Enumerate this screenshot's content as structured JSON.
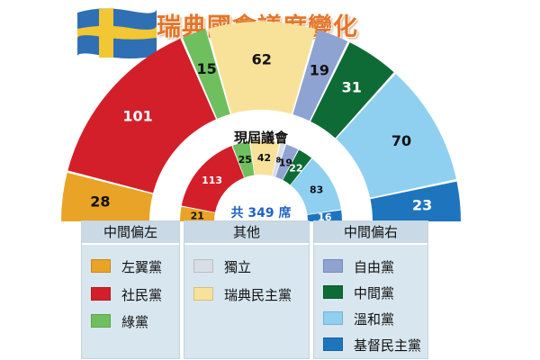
{
  "title": "瑞典國會議席變化",
  "chart_data": {
    "type": "parliament-semicircle",
    "outer_ring": {
      "segments": [
        {
          "party": "左翼黨",
          "seats": 28,
          "color": "#e9a326"
        },
        {
          "party": "社民黨",
          "seats": 101,
          "color": "#d31f2a"
        },
        {
          "party": "綠黨",
          "seats": 15,
          "color": "#6fbf5f"
        },
        {
          "party": "瑞典民主黨",
          "seats": 62,
          "color": "#f8e29a"
        },
        {
          "party": "自由黨",
          "seats": 19,
          "color": "#8fa3d3"
        },
        {
          "party": "中間黨",
          "seats": 31,
          "color": "#0f6b35"
        },
        {
          "party": "溫和黨",
          "seats": 70,
          "color": "#8fd0f1"
        },
        {
          "party": "基督民主黨",
          "seats": 23,
          "color": "#1f75bd"
        }
      ]
    },
    "inner_ring": {
      "label": "現屆議會",
      "total_label": "共 349 席",
      "segments": [
        {
          "party": "左翼黨",
          "seats": 21,
          "color": "#e9a326"
        },
        {
          "party": "社民黨",
          "seats": 113,
          "color": "#d31f2a"
        },
        {
          "party": "綠黨",
          "seats": 25,
          "color": "#6fbf5f"
        },
        {
          "party": "瑞典民主黨",
          "seats": 42,
          "color": "#f8e29a"
        },
        {
          "party": "獨立",
          "seats": 8,
          "color": "#d9dee6"
        },
        {
          "party": "自由黨",
          "seats": 19,
          "color": "#8fa3d3"
        },
        {
          "party": "中間黨",
          "seats": 22,
          "color": "#0f6b35"
        },
        {
          "party": "溫和黨",
          "seats": 83,
          "color": "#8fd0f1"
        },
        {
          "party": "基督民主黨",
          "seats": 16,
          "color": "#1f75bd"
        }
      ]
    }
  },
  "legend": {
    "groups": [
      {
        "heading": "中間偏左",
        "items": [
          {
            "label": "左翼黨",
            "color": "#e9a326"
          },
          {
            "label": "社民黨",
            "color": "#d31f2a"
          },
          {
            "label": "綠黨",
            "color": "#6fbf5f"
          }
        ]
      },
      {
        "heading": "其他",
        "items": [
          {
            "label": "獨立",
            "color": "#d9dee6"
          },
          {
            "label": "瑞典民主黨",
            "color": "#f8e29a"
          }
        ]
      },
      {
        "heading": "中間偏右",
        "items": [
          {
            "label": "自由黨",
            "color": "#8fa3d3"
          },
          {
            "label": "中間黨",
            "color": "#0f6b35"
          },
          {
            "label": "溫和黨",
            "color": "#8fd0f1"
          },
          {
            "label": "基督民主黨",
            "color": "#1f75bd"
          }
        ]
      }
    ]
  }
}
